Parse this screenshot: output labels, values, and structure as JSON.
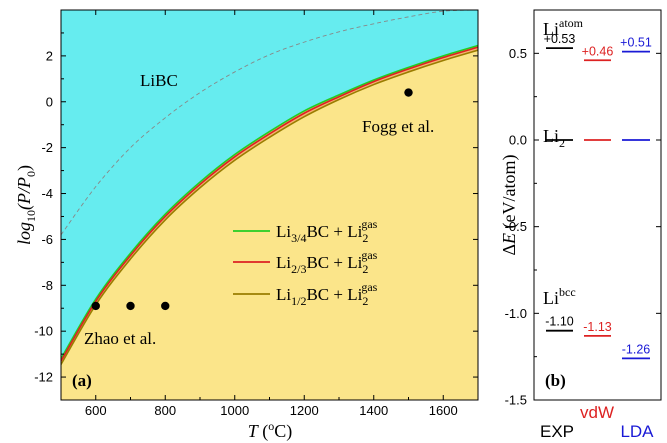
{
  "chart_data": [
    {
      "panel": "(a)",
      "type": "area",
      "xlabel": "T (°C)",
      "ylabel": "log10(P/P0)",
      "xlim": [
        500,
        1700
      ],
      "ylim": [
        -13,
        4
      ],
      "x_ticks": [
        600,
        800,
        1000,
        1200,
        1400,
        1600
      ],
      "y_ticks": [
        -12,
        -10,
        -8,
        -6,
        -4,
        -2,
        0,
        2
      ],
      "region_labels": [
        "LiBC"
      ],
      "region_colors": {
        "upper": "#66ecef",
        "lower": "#fbe58a"
      },
      "series": [
        {
          "name": "Li3/4BC + Li2gas",
          "color": "#22cc22",
          "x": [
            500,
            600,
            700,
            800,
            900,
            1000,
            1100,
            1200,
            1300,
            1400,
            1500,
            1600,
            1700
          ],
          "y": [
            -11.2,
            -8.6,
            -6.6,
            -4.9,
            -3.5,
            -2.3,
            -1.3,
            -0.4,
            0.3,
            0.95,
            1.5,
            2.0,
            2.45
          ]
        },
        {
          "name": "Li2/3BC + Li2gas",
          "color": "#dd2222",
          "x": [
            500,
            600,
            700,
            800,
            900,
            1000,
            1100,
            1200,
            1300,
            1400,
            1500,
            1600,
            1700
          ],
          "y": [
            -11.3,
            -8.7,
            -6.7,
            -5.0,
            -3.6,
            -2.4,
            -1.4,
            -0.5,
            0.22,
            0.88,
            1.43,
            1.93,
            2.38
          ]
        },
        {
          "name": "Li1/2BC + Li2gas",
          "color": "#9a7d00",
          "x": [
            500,
            600,
            700,
            800,
            900,
            1000,
            1100,
            1200,
            1300,
            1400,
            1500,
            1600,
            1700
          ],
          "y": [
            -11.45,
            -8.85,
            -6.85,
            -5.15,
            -3.75,
            -2.55,
            -1.55,
            -0.65,
            0.1,
            0.75,
            1.3,
            1.8,
            2.25
          ]
        },
        {
          "name": "",
          "style": "dashed",
          "color": "#888888",
          "x": [
            500,
            600,
            700,
            800,
            900,
            1000,
            1100,
            1200,
            1300,
            1400,
            1500,
            1600,
            1700
          ],
          "y": [
            -5.8,
            -3.7,
            -2.0,
            -0.7,
            0.4,
            1.3,
            2.05,
            2.6,
            3.05,
            3.4,
            3.7,
            3.95,
            4.0
          ]
        }
      ],
      "points": [
        {
          "x": 600,
          "y": -8.9,
          "group": "Zhao et al."
        },
        {
          "x": 700,
          "y": -8.9,
          "group": "Zhao et al."
        },
        {
          "x": 800,
          "y": -8.9,
          "group": "Zhao et al."
        },
        {
          "x": 1500,
          "y": 0.4,
          "group": "Fogg et al."
        }
      ],
      "annotations": [
        "Zhao et al.",
        "Fogg et al."
      ]
    },
    {
      "panel": "(b)",
      "type": "scatter",
      "ylabel": "ΔE (eV/atom)",
      "ylim": [
        -1.5,
        0.75
      ],
      "y_ticks": [
        -1.5,
        -1.0,
        -0.5,
        0.0,
        0.5
      ],
      "columns": [
        {
          "name": "EXP",
          "color": "#000000"
        },
        {
          "name": "vdW",
          "color": "#dd2222"
        },
        {
          "name": "LDA",
          "color": "#1a1ad6"
        }
      ],
      "levels": [
        {
          "name": "Li atom",
          "values": [
            0.53,
            0.46,
            0.51
          ],
          "labels": [
            "+0.53",
            "+0.46",
            "+0.51"
          ]
        },
        {
          "name": "Li2",
          "values": [
            0.0,
            0.0,
            0.0
          ],
          "labels": [
            "",
            "",
            ""
          ]
        },
        {
          "name": "Li bcc",
          "values": [
            -1.1,
            -1.13,
            -1.26
          ],
          "labels": [
            "-1.10",
            "-1.13",
            "-1.26"
          ]
        }
      ]
    }
  ],
  "panel_a": {
    "region_label": "LiBC",
    "panel_tag": "(a)",
    "ref_zhao": "Zhao et al.",
    "ref_fogg": "Fogg et al.",
    "ylabel_main": "log",
    "ylabel_sub": "10",
    "ylabel_arg": "(P/P",
    "ylabel_arg_sub": "0",
    "ylabel_close": ")",
    "xlabel_T": "T",
    "xlabel_unit_open": " (",
    "xlabel_unit_sup": "o",
    "xlabel_unit_close": "C)",
    "legend": [
      {
        "pre": "Li",
        "sub": "3/4",
        "mid": "BC + Li",
        "sub2": "2",
        "sup2": "gas"
      },
      {
        "pre": "Li",
        "sub": "2/3",
        "mid": "BC + Li",
        "sub2": "2",
        "sup2": "gas"
      },
      {
        "pre": "Li",
        "sub": "1/2",
        "mid": "BC + Li",
        "sub2": "2",
        "sup2": "gas"
      }
    ]
  },
  "panel_b": {
    "panel_tag": "(b)",
    "ylabel_delta": "Δ",
    "ylabel_E": "E",
    "ylabel_unit": " (eV/atom)",
    "level_titles": [
      {
        "base": "Li",
        "sup": "atom",
        "sub": ""
      },
      {
        "base": "Li",
        "sup": "",
        "sub": "2"
      },
      {
        "base": "Li",
        "sup": "bcc",
        "sub": ""
      }
    ]
  }
}
